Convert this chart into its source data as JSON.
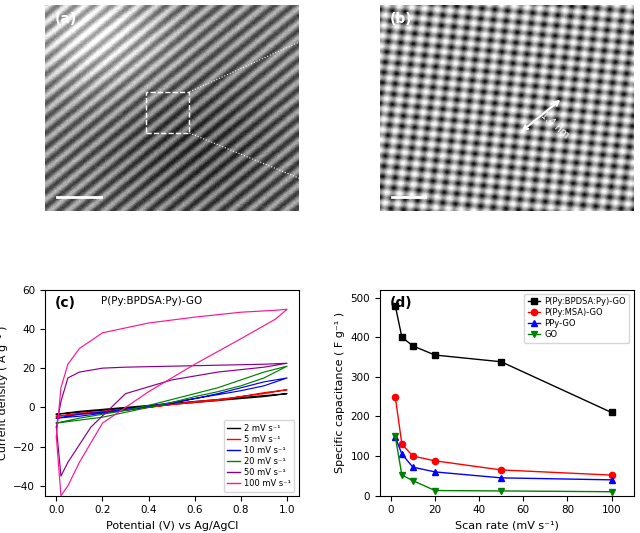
{
  "panel_c": {
    "title": "P(Py:BPDSA:Py)-GO",
    "xlabel": "Potential (V) vs Ag/AgCl",
    "ylabel": "Current density ( A g⁻¹ )",
    "ylim": [
      -45,
      55
    ],
    "xlim": [
      -0.05,
      1.05
    ],
    "yticks": [
      -40,
      -20,
      0,
      20,
      40,
      60
    ],
    "xticks": [
      0.0,
      0.2,
      0.4,
      0.6,
      0.8,
      1.0
    ],
    "curves": [
      {
        "label": "2 mV s⁻¹",
        "color": "black",
        "x_loop": [
          0.0,
          0.1,
          0.2,
          0.3,
          0.4,
          0.5,
          0.6,
          0.7,
          0.8,
          0.9,
          1.0,
          0.9,
          0.8,
          0.7,
          0.6,
          0.5,
          0.4,
          0.3,
          0.2,
          0.1,
          0.0
        ],
        "y_loop": [
          -3.5,
          -2.0,
          -1.0,
          0.0,
          1.0,
          2.0,
          3.0,
          4.0,
          5.0,
          6.0,
          7.0,
          5.5,
          4.5,
          3.5,
          2.5,
          1.5,
          0.5,
          -0.5,
          -1.5,
          -2.5,
          -3.5
        ]
      },
      {
        "label": "5 mV s⁻¹",
        "color": "red",
        "x_loop": [
          0.0,
          0.1,
          0.2,
          0.3,
          0.4,
          0.5,
          0.6,
          0.7,
          0.8,
          0.9,
          1.0,
          0.9,
          0.8,
          0.7,
          0.6,
          0.5,
          0.4,
          0.3,
          0.2,
          0.1,
          0.0
        ],
        "y_loop": [
          -4.5,
          -3.0,
          -2.0,
          -1.0,
          0.0,
          1.5,
          2.5,
          3.5,
          5.5,
          7.5,
          9.0,
          7.0,
          5.5,
          4.0,
          3.0,
          1.5,
          0.0,
          -1.5,
          -2.5,
          -3.5,
          -4.5
        ]
      },
      {
        "label": "10 mV s⁻¹",
        "color": "blue",
        "x_loop": [
          0.0,
          0.1,
          0.2,
          0.3,
          0.4,
          0.5,
          0.6,
          0.7,
          0.8,
          0.9,
          1.0,
          0.9,
          0.8,
          0.7,
          0.6,
          0.5,
          0.4,
          0.3,
          0.2,
          0.1,
          0.0
        ],
        "y_loop": [
          -5.5,
          -3.5,
          -2.5,
          -1.0,
          0.5,
          2.0,
          4.5,
          7.0,
          10.0,
          13.0,
          15.0,
          11.0,
          8.5,
          6.5,
          4.5,
          2.5,
          0.5,
          -1.5,
          -3.0,
          -4.5,
          -5.5
        ]
      },
      {
        "label": "20 mV s⁻¹",
        "color": "green",
        "x_loop": [
          0.0,
          0.1,
          0.2,
          0.3,
          0.4,
          0.5,
          0.6,
          0.7,
          0.8,
          0.9,
          1.0,
          0.9,
          0.8,
          0.7,
          0.6,
          0.5,
          0.4,
          0.3,
          0.2,
          0.1,
          0.0
        ],
        "y_loop": [
          -8.0,
          -5.5,
          -3.5,
          -1.5,
          1.0,
          4.0,
          7.0,
          10.0,
          14.0,
          18.0,
          21.0,
          15.0,
          11.0,
          8.0,
          5.5,
          2.5,
          0.0,
          -2.5,
          -5.0,
          -6.5,
          -8.0
        ]
      },
      {
        "label": "50 mV s⁻¹",
        "color": "#8B008B",
        "x_loop": [
          0.0,
          0.02,
          0.05,
          0.1,
          0.2,
          0.3,
          0.5,
          0.7,
          0.9,
          1.0,
          0.9,
          0.7,
          0.5,
          0.3,
          0.15,
          0.05,
          0.02,
          0.0
        ],
        "y_loop": [
          -10.0,
          3.0,
          15.0,
          18.0,
          20.0,
          20.5,
          21.0,
          21.5,
          22.0,
          22.5,
          20.5,
          18.0,
          14.0,
          7.0,
          -10.0,
          -28.0,
          -35.0,
          -10.0
        ]
      },
      {
        "label": "100 mV s⁻¹",
        "color": "#FF1493",
        "x_loop": [
          0.0,
          0.02,
          0.05,
          0.1,
          0.2,
          0.4,
          0.6,
          0.8,
          0.95,
          1.0,
          0.95,
          0.8,
          0.6,
          0.4,
          0.2,
          0.1,
          0.05,
          0.02,
          0.0
        ],
        "y_loop": [
          -15.0,
          10.0,
          22.0,
          30.0,
          38.0,
          43.0,
          46.0,
          48.5,
          49.5,
          50.0,
          45.0,
          35.0,
          22.0,
          8.0,
          -8.0,
          -28.0,
          -40.0,
          -45.0,
          -15.0
        ]
      }
    ]
  },
  "panel_d": {
    "xlabel": "Scan rate (mV s⁻¹)",
    "ylabel": "Specific capacitance ( F g⁻¹ )",
    "ylim": [
      0,
      520
    ],
    "xlim": [
      -5,
      110
    ],
    "yticks": [
      0,
      100,
      200,
      300,
      400,
      500
    ],
    "xticks": [
      0,
      20,
      40,
      60,
      80,
      100
    ],
    "series": [
      {
        "label": "P(Py:BPDSA:Py)-GO",
        "color": "black",
        "marker": "s",
        "x": [
          2,
          5,
          10,
          20,
          50,
          100
        ],
        "y": [
          480,
          400,
          378,
          355,
          338,
          210
        ]
      },
      {
        "label": "P(Py:MSA)-GO",
        "color": "red",
        "marker": "o",
        "x": [
          2,
          5,
          10,
          20,
          50,
          100
        ],
        "y": [
          250,
          130,
          100,
          88,
          65,
          52
        ]
      },
      {
        "label": "PPy-GO",
        "color": "blue",
        "marker": "^",
        "x": [
          2,
          5,
          10,
          20,
          50,
          100
        ],
        "y": [
          148,
          105,
          72,
          60,
          45,
          40
        ]
      },
      {
        "label": "GO",
        "color": "green",
        "marker": "v",
        "x": [
          2,
          5,
          10,
          20,
          50,
          100
        ],
        "y": [
          150,
          52,
          38,
          13,
          12,
          10
        ]
      }
    ]
  },
  "label_a": "(a)",
  "label_b": "(b)",
  "label_c": "(c)",
  "label_d": "(d)",
  "annotation_b": "1.4 nm",
  "background_color": "#ffffff"
}
